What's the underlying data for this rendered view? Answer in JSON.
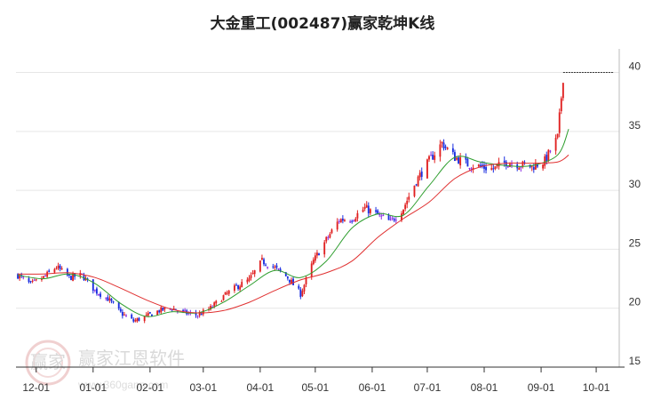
{
  "chart_data": {
    "type": "candlestick",
    "title": "大金重工(002487)赢家乾坤K线",
    "ylim": [
      15,
      42
    ],
    "yticks": [
      15,
      20,
      25,
      30,
      35,
      40
    ],
    "x_range": [
      "2023-11-20",
      "2024-10-15"
    ],
    "xticks": [
      {
        "date": "2023-12-01",
        "label": "12-01"
      },
      {
        "date": "2024-01-01",
        "label": "01-01"
      },
      {
        "date": "2024-02-01",
        "label": "02-01"
      },
      {
        "date": "2024-03-01",
        "label": "03-01"
      },
      {
        "date": "2024-04-01",
        "label": "04-01"
      },
      {
        "date": "2024-05-01",
        "label": "05-01"
      },
      {
        "date": "2024-06-01",
        "label": "06-01"
      },
      {
        "date": "2024-07-01",
        "label": "07-01"
      },
      {
        "date": "2024-08-01",
        "label": "08-01"
      },
      {
        "date": "2024-09-01",
        "label": "09-01"
      },
      {
        "date": "2024-10-01",
        "label": "10-01"
      }
    ],
    "grid": true,
    "close_path": [
      [
        "2023-11-21",
        22.8
      ],
      [
        "2023-11-28",
        22.0
      ],
      [
        "2023-12-05",
        22.6
      ],
      [
        "2023-12-12",
        23.5
      ],
      [
        "2023-12-19",
        22.6
      ],
      [
        "2023-12-26",
        22.8
      ],
      [
        "2024-01-02",
        21.5
      ],
      [
        "2024-01-09",
        20.8
      ],
      [
        "2024-01-16",
        19.6
      ],
      [
        "2024-01-23",
        18.9
      ],
      [
        "2024-01-30",
        19.3
      ],
      [
        "2024-02-06",
        19.8
      ],
      [
        "2024-02-13",
        20.0
      ],
      [
        "2024-02-20",
        19.6
      ],
      [
        "2024-02-27",
        19.4
      ],
      [
        "2024-03-05",
        20.0
      ],
      [
        "2024-03-12",
        21.0
      ],
      [
        "2024-03-19",
        21.8
      ],
      [
        "2024-03-26",
        22.4
      ],
      [
        "2024-04-02",
        24.0
      ],
      [
        "2024-04-09",
        23.4
      ],
      [
        "2024-04-16",
        22.6
      ],
      [
        "2024-04-23",
        21.2
      ],
      [
        "2024-04-30",
        24.0
      ],
      [
        "2024-05-07",
        25.8
      ],
      [
        "2024-05-14",
        27.5
      ],
      [
        "2024-05-21",
        27.6
      ],
      [
        "2024-05-28",
        28.5
      ],
      [
        "2024-06-04",
        27.9
      ],
      [
        "2024-06-11",
        27.3
      ],
      [
        "2024-06-18",
        28.5
      ],
      [
        "2024-06-25",
        30.8
      ],
      [
        "2024-07-02",
        32.5
      ],
      [
        "2024-07-09",
        34.0
      ],
      [
        "2024-07-16",
        32.8
      ],
      [
        "2024-07-23",
        32.2
      ],
      [
        "2024-07-30",
        32.0
      ],
      [
        "2024-08-06",
        31.8
      ],
      [
        "2024-08-13",
        32.4
      ],
      [
        "2024-08-20",
        32.2
      ],
      [
        "2024-08-27",
        32.0
      ],
      [
        "2024-09-03",
        32.5
      ],
      [
        "2024-09-10",
        34.5
      ],
      [
        "2024-09-13",
        39.6
      ]
    ],
    "series": [
      {
        "kind": "ma-short",
        "color": "#2e9e2e",
        "points": [
          [
            "2023-11-21",
            22.8
          ],
          [
            "2023-12-05",
            22.5
          ],
          [
            "2023-12-19",
            22.9
          ],
          [
            "2024-01-02",
            22.1
          ],
          [
            "2024-01-16",
            20.4
          ],
          [
            "2024-01-30",
            19.3
          ],
          [
            "2024-02-13",
            19.7
          ],
          [
            "2024-02-27",
            19.6
          ],
          [
            "2024-03-12",
            20.5
          ],
          [
            "2024-03-26",
            21.9
          ],
          [
            "2024-04-09",
            23.2
          ],
          [
            "2024-04-23",
            22.6
          ],
          [
            "2024-05-07",
            24.0
          ],
          [
            "2024-05-21",
            26.8
          ],
          [
            "2024-06-04",
            28.0
          ],
          [
            "2024-06-18",
            27.9
          ],
          [
            "2024-07-02",
            30.4
          ],
          [
            "2024-07-16",
            32.8
          ],
          [
            "2024-07-30",
            32.4
          ],
          [
            "2024-08-13",
            32.1
          ],
          [
            "2024-08-27",
            32.1
          ],
          [
            "2024-09-10",
            33.0
          ],
          [
            "2024-09-16",
            35.2
          ]
        ]
      },
      {
        "kind": "ma-long",
        "color": "#e03030",
        "points": [
          [
            "2023-11-21",
            22.9
          ],
          [
            "2023-12-05",
            22.9
          ],
          [
            "2023-12-19",
            23.0
          ],
          [
            "2024-01-02",
            22.6
          ],
          [
            "2024-01-16",
            21.7
          ],
          [
            "2024-01-30",
            20.7
          ],
          [
            "2024-02-13",
            19.9
          ],
          [
            "2024-02-27",
            19.6
          ],
          [
            "2024-03-12",
            19.8
          ],
          [
            "2024-03-26",
            20.5
          ],
          [
            "2024-04-09",
            21.5
          ],
          [
            "2024-04-23",
            22.4
          ],
          [
            "2024-05-07",
            23.0
          ],
          [
            "2024-05-21",
            24.0
          ],
          [
            "2024-06-04",
            26.0
          ],
          [
            "2024-06-18",
            27.6
          ],
          [
            "2024-07-02",
            29.0
          ],
          [
            "2024-07-16",
            31.0
          ],
          [
            "2024-07-30",
            32.0
          ],
          [
            "2024-08-13",
            32.3
          ],
          [
            "2024-08-27",
            32.3
          ],
          [
            "2024-09-10",
            32.4
          ],
          [
            "2024-09-16",
            33.0
          ]
        ]
      }
    ],
    "reference_line": {
      "value": 40,
      "from": "2024-09-13",
      "color": "#333333",
      "style": "dashed"
    },
    "up_color": "#e02020",
    "down_color": "#1a2ee0",
    "neutral_color": "#8a2be2"
  },
  "watermark": {
    "text": "赢家江恩软件",
    "url": "www.360gann.com",
    "seal_text": "赢家"
  }
}
